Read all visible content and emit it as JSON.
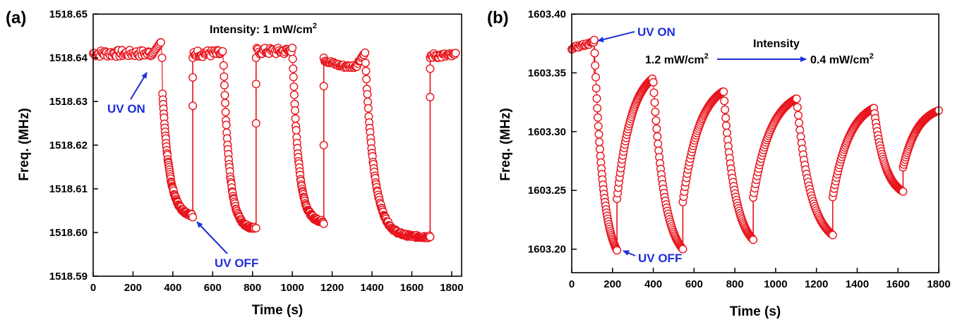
{
  "colors": {
    "marker": "#e8141c",
    "annotation": "#1f2fd8",
    "axis": "#000000"
  },
  "chart_data": [
    {
      "type": "scatter",
      "panel_label": "(a)",
      "xlabel": "Time (s)",
      "ylabel": "Freq. (MHz)",
      "xlim": [
        0,
        1850
      ],
      "ylim": [
        1518.59,
        1518.65
      ],
      "xticks": [
        0,
        200,
        400,
        600,
        800,
        1000,
        1200,
        1400,
        1600,
        1800
      ],
      "yticks": [
        1518.59,
        1518.6,
        1518.61,
        1518.62,
        1518.63,
        1518.64,
        1518.65
      ],
      "ytick_labels": [
        "1518.59",
        "1518.60",
        "1518.61",
        "1518.62",
        "1518.63",
        "1518.64",
        "1518.65"
      ],
      "annotations": {
        "intensity_title": "Intensity: 1 mW/cm",
        "intensity_sup": "2",
        "uv_on": "UV ON",
        "uv_off": "UV OFF"
      },
      "segments": [
        {
          "kind": "flat",
          "t0": 0,
          "t1": 300,
          "v": 1518.641,
          "noise": 0.0008,
          "n": 55
        },
        {
          "kind": "step",
          "t0": 300,
          "t1": 338,
          "from": 1518.641,
          "to": 1518.6435,
          "n": 8
        },
        {
          "kind": "step",
          "t0": 340,
          "t1": 346,
          "from": 1518.6435,
          "to": 1518.64,
          "n": 2
        },
        {
          "kind": "curve",
          "t0": 348,
          "t1": 495,
          "from": 1518.632,
          "to": 1518.604,
          "tau": 35,
          "n": 90
        },
        {
          "kind": "jump",
          "t": 500,
          "vals": [
            1518.6035,
            1518.629,
            1518.6355,
            1518.64
          ]
        },
        {
          "kind": "flat",
          "t0": 505,
          "t1": 650,
          "v": 1518.641,
          "noise": 0.0008,
          "n": 30
        },
        {
          "kind": "curve",
          "t0": 655,
          "t1": 810,
          "from": 1518.638,
          "to": 1518.601,
          "tau": 30,
          "n": 80
        },
        {
          "kind": "jump",
          "t": 818,
          "vals": [
            1518.601,
            1518.625,
            1518.634,
            1518.64
          ]
        },
        {
          "kind": "flat",
          "t0": 822,
          "t1": 995,
          "v": 1518.6415,
          "noise": 0.0008,
          "n": 35
        },
        {
          "kind": "curve",
          "t0": 1000,
          "t1": 1155,
          "from": 1518.6425,
          "to": 1518.6025,
          "tau": 30,
          "n": 80
        },
        {
          "kind": "jump",
          "t": 1158,
          "vals": [
            1518.602,
            1518.62,
            1518.6335,
            1518.64
          ]
        },
        {
          "kind": "dip",
          "t0": 1162,
          "t1": 1360,
          "v": 1518.6395,
          "depth": 0.0015,
          "n": 45
        },
        {
          "kind": "curve",
          "t0": 1365,
          "t1": 1690,
          "from": 1518.641,
          "to": 1518.599,
          "tau": 45,
          "n": 140
        },
        {
          "kind": "jump",
          "t": 1692,
          "vals": [
            1518.599,
            1518.631,
            1518.6375,
            1518.64
          ]
        },
        {
          "kind": "flat",
          "t0": 1696,
          "t1": 1820,
          "v": 1518.6405,
          "noise": 0.0006,
          "n": 26
        }
      ]
    },
    {
      "type": "scatter",
      "panel_label": "(b)",
      "xlabel": "Time (s)",
      "ylabel": "Freq. (MHz)",
      "xlim": [
        0,
        1800
      ],
      "ylim": [
        1603.18,
        1603.4
      ],
      "xticks": [
        0,
        200,
        400,
        600,
        800,
        1000,
        1200,
        1400,
        1600,
        1800
      ],
      "yticks": [
        1603.2,
        1603.25,
        1603.3,
        1603.35,
        1603.4
      ],
      "ytick_labels": [
        "1603.20",
        "1603.25",
        "1603.30",
        "1603.35",
        "1603.40"
      ],
      "annotations": {
        "intensity_word": "Intensity",
        "intensity_start": "1.2 mW/cm",
        "intensity_start_sup": "2",
        "intensity_end": "0.4 mW/cm",
        "intensity_end_sup": "2",
        "uv_on": "UV ON",
        "uv_off": "UV OFF"
      },
      "cycles": [
        {
          "t_on": 110,
          "t_off": 222,
          "v_top": 1603.378,
          "v_bottom": 1603.199,
          "v_recover_end": 1603.345,
          "t_recover_end": 395
        },
        {
          "t_on": 400,
          "t_off": 545,
          "v_top": 1603.342,
          "v_bottom": 1603.2,
          "v_recover_end": 1603.334,
          "t_recover_end": 740
        },
        {
          "t_on": 745,
          "t_off": 890,
          "v_top": 1603.334,
          "v_bottom": 1603.208,
          "v_recover_end": 1603.328,
          "t_recover_end": 1100
        },
        {
          "t_on": 1103,
          "t_off": 1280,
          "v_top": 1603.328,
          "v_bottom": 1603.212,
          "v_recover_end": 1603.32,
          "t_recover_end": 1480
        },
        {
          "t_on": 1482,
          "t_off": 1625,
          "v_top": 1603.32,
          "v_bottom": 1603.249,
          "v_recover_end": 1603.318,
          "t_recover_end": 1800
        }
      ],
      "baseline": {
        "t0": 0,
        "t1": 108,
        "v0": 1603.371,
        "v1": 1603.376,
        "n": 20
      }
    }
  ]
}
